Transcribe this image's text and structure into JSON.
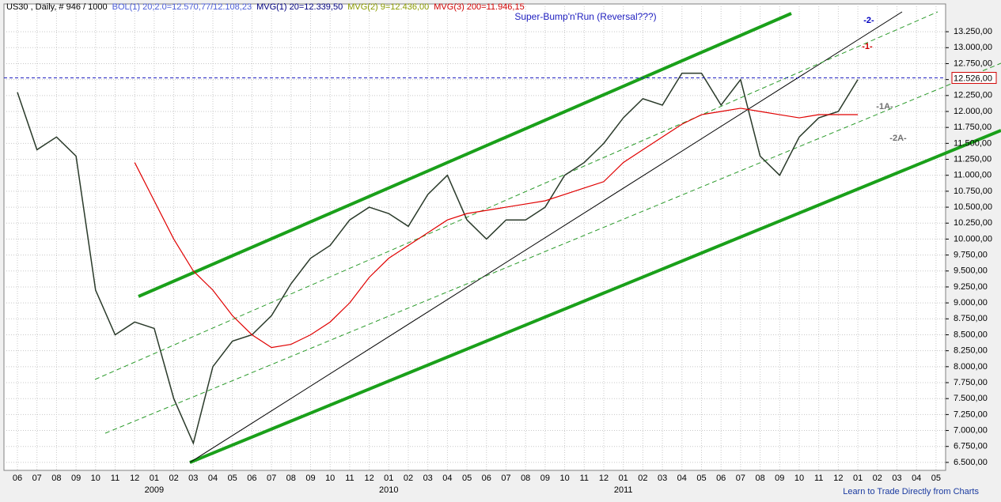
{
  "chart_data": {
    "type": "line",
    "header": [
      {
        "text": "US30 , Daily, # 946 / 1000",
        "color": "#000000"
      },
      {
        "text": "BOL(1) 20;2.0=12.570,77/12.108,23",
        "color": "#4a5cd8"
      },
      {
        "text": "MVG(1) 20=12.339,50",
        "color": "#000080"
      },
      {
        "text": "MVG(2) 9=12.436,00",
        "color": "#8a9a00"
      },
      {
        "text": "MVG(3) 200=11.946,15",
        "color": "#d00000"
      }
    ],
    "title": "Super-Bump'n'Run (Reversal???)",
    "annotations": [
      {
        "text": "-2-",
        "color": "#0000c0"
      },
      {
        "text": "-1-",
        "color": "#d00000"
      },
      {
        "text": "-1A-",
        "color": "#707070"
      },
      {
        "text": "-2A-",
        "color": "#707070"
      }
    ],
    "footer": "Learn to Trade Directly from Charts",
    "years": [
      "2009",
      "2010",
      "2011"
    ],
    "categories": [
      "06",
      "07",
      "08",
      "09",
      "10",
      "11",
      "12",
      "01",
      "02",
      "03",
      "04",
      "05",
      "06",
      "07",
      "08",
      "09",
      "10",
      "11",
      "12",
      "01",
      "02",
      "03",
      "04",
      "05",
      "06",
      "07",
      "08",
      "09",
      "10",
      "11",
      "12",
      "01",
      "02",
      "03",
      "04",
      "05",
      "06",
      "07",
      "08",
      "09",
      "10",
      "11",
      "12",
      "01",
      "02",
      "03",
      "04",
      "05"
    ],
    "series": [
      {
        "color": "#2a3a2a",
        "values": [
          12300,
          11400,
          11600,
          11300,
          9200,
          8500,
          8700,
          8600,
          7500,
          6800,
          8000,
          8400,
          8500,
          8800,
          9300,
          9700,
          9900,
          10300,
          10500,
          10400,
          10200,
          10700,
          11000,
          10300,
          10000,
          10300,
          10300,
          10500,
          11000,
          11200,
          11500,
          11900,
          12200,
          12100,
          12600,
          12600,
          12100,
          12500,
          11300,
          11000,
          11600,
          11900,
          12000,
          12500,
          null,
          null,
          null,
          null
        ]
      },
      {
        "color": "#e00000",
        "values": [
          null,
          null,
          null,
          null,
          null,
          null,
          11200,
          10600,
          10000,
          9500,
          9200,
          8800,
          8500,
          8300,
          8350,
          8500,
          8700,
          9000,
          9400,
          9700,
          9900,
          10100,
          10300,
          10400,
          10450,
          10500,
          10550,
          10600,
          10700,
          10800,
          10900,
          11200,
          11400,
          11600,
          11800,
          11950,
          12000,
          12050,
          12000,
          11950,
          11900,
          11950,
          11950,
          11950,
          null,
          null,
          null,
          null
        ]
      }
    ],
    "price_line": {
      "value": 12526,
      "label": "12.526,00"
    },
    "ylim": [
      6375,
      13685
    ],
    "yticks": [
      {
        "value": 6500,
        "label": "6.500,00"
      },
      {
        "value": 6750,
        "label": "6.750,00"
      },
      {
        "value": 7000,
        "label": "7.000,00"
      },
      {
        "value": 7250,
        "label": "7.250,00"
      },
      {
        "value": 7500,
        "label": "7.500,00"
      },
      {
        "value": 7750,
        "label": "7.750,00"
      },
      {
        "value": 8000,
        "label": "8.000,00"
      },
      {
        "value": 8250,
        "label": "8.250,00"
      },
      {
        "value": 8500,
        "label": "8.500,00"
      },
      {
        "value": 8750,
        "label": "8.750,00"
      },
      {
        "value": 9000,
        "label": "9.000,00"
      },
      {
        "value": 9250,
        "label": "9.250,00"
      },
      {
        "value": 9500,
        "label": "9.500,00"
      },
      {
        "value": 9750,
        "label": "9.750,00"
      },
      {
        "value": 10000,
        "label": "10.000,00"
      },
      {
        "value": 10250,
        "label": "10.250,00"
      },
      {
        "value": 10500,
        "label": "10.500,00"
      },
      {
        "value": 10750,
        "label": "10.750,00"
      },
      {
        "value": 11000,
        "label": "11.000,00"
      },
      {
        "value": 11250,
        "label": "11.250,00"
      },
      {
        "value": 11500,
        "label": "11.500,00"
      },
      {
        "value": 11750,
        "label": "11.750,00"
      },
      {
        "value": 12000,
        "label": "12.000,00"
      },
      {
        "value": 12250,
        "label": "12.250,00"
      },
      {
        "value": 12500,
        "label": "12.500,00"
      },
      {
        "value": 12750,
        "label": "12.750,00"
      },
      {
        "value": 13000,
        "label": "13.000,00"
      },
      {
        "value": 13250,
        "label": "13.250,00"
      }
    ],
    "grid": true
  }
}
